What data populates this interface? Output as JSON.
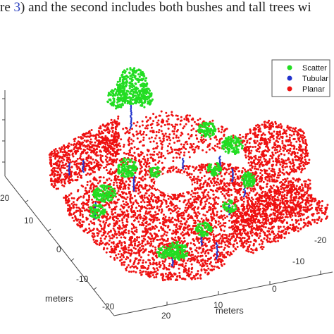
{
  "caption": {
    "prefix": "re ",
    "ref": "3",
    "suffix": ") and the second includes both bushes and tall trees wi"
  },
  "chart_data": {
    "type": "scatter",
    "subtype": "3d-point-cloud",
    "xlabel": "meters",
    "ylabel": "meters",
    "zlabel": "",
    "xticks": [
      "20",
      "10",
      "0",
      "-10",
      "-20"
    ],
    "yticks": [
      "20",
      "10",
      "0",
      "-10",
      "-20"
    ],
    "legend": {
      "placement": "top-right",
      "entries": [
        {
          "name": "Scatter",
          "color": "#22dd22"
        },
        {
          "name": "Tubular",
          "color": "#2233cc"
        },
        {
          "name": "Planar",
          "color": "#ee1111"
        }
      ]
    },
    "grid": false,
    "series": [
      {
        "name": "Scatter",
        "color": "#22dd22"
      },
      {
        "name": "Tubular",
        "color": "#2233cc"
      },
      {
        "name": "Planar",
        "color": "#ee1111"
      }
    ]
  }
}
